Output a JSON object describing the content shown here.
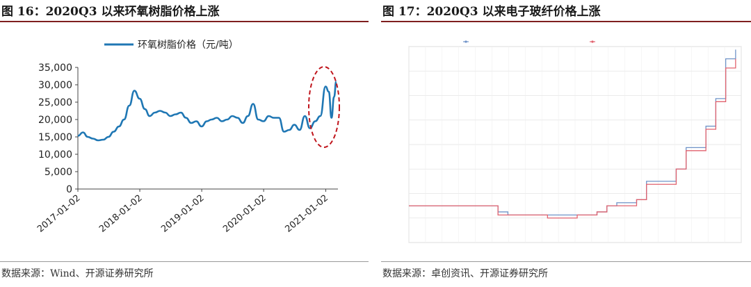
{
  "left": {
    "title": "图 16：2020Q3 以来环氧树脂价格上涨",
    "source": "数据来源：Wind、开源证券研究所",
    "line_color": "#1f77b4",
    "highlight_color": "#c0161d",
    "chart_data": {
      "type": "line",
      "series": [
        {
          "name": "环氧树脂价格（元/吨）",
          "values": [
            [
              "2017-01-02",
              15300
            ],
            [
              "2017-02-01",
              16300
            ],
            [
              "2017-03-01",
              15000
            ],
            [
              "2017-04-01",
              14500
            ],
            [
              "2017-05-01",
              14000
            ],
            [
              "2017-06-01",
              14200
            ],
            [
              "2017-07-01",
              15000
            ],
            [
              "2017-08-01",
              16500
            ],
            [
              "2017-09-01",
              18000
            ],
            [
              "2017-10-01",
              20000
            ],
            [
              "2017-11-01",
              24000
            ],
            [
              "2017-12-01",
              28300
            ],
            [
              "2018-01-01",
              26000
            ],
            [
              "2018-02-01",
              23000
            ],
            [
              "2018-03-01",
              21000
            ],
            [
              "2018-04-01",
              22000
            ],
            [
              "2018-05-01",
              22500
            ],
            [
              "2018-06-01",
              22000
            ],
            [
              "2018-07-01",
              21000
            ],
            [
              "2018-08-01",
              21500
            ],
            [
              "2018-09-01",
              22000
            ],
            [
              "2018-10-01",
              20500
            ],
            [
              "2018-11-01",
              19000
            ],
            [
              "2018-12-01",
              19500
            ],
            [
              "2019-01-01",
              18000
            ],
            [
              "2019-02-01",
              19500
            ],
            [
              "2019-03-01",
              20000
            ],
            [
              "2019-04-01",
              20500
            ],
            [
              "2019-05-01",
              19500
            ],
            [
              "2019-06-01",
              20000
            ],
            [
              "2019-07-01",
              21000
            ],
            [
              "2019-08-01",
              20500
            ],
            [
              "2019-09-01",
              19000
            ],
            [
              "2019-10-01",
              21000
            ],
            [
              "2019-11-01",
              24500
            ],
            [
              "2019-12-01",
              20000
            ],
            [
              "2020-01-01",
              19500
            ],
            [
              "2020-02-01",
              21000
            ],
            [
              "2020-03-01",
              20500
            ],
            [
              "2020-04-01",
              20500
            ],
            [
              "2020-05-01",
              16500
            ],
            [
              "2020-06-01",
              17000
            ],
            [
              "2020-07-01",
              18500
            ],
            [
              "2020-08-01",
              17000
            ],
            [
              "2020-09-01",
              21000
            ],
            [
              "2020-10-01",
              17500
            ],
            [
              "2020-11-01",
              19500
            ],
            [
              "2020-12-01",
              21000
            ],
            [
              "2021-01-01",
              29500
            ],
            [
              "2021-01-20",
              28000
            ],
            [
              "2021-02-05",
              20500
            ],
            [
              "2021-02-20",
              26500
            ],
            [
              "2021-03-05",
              31000
            ]
          ]
        }
      ],
      "y_ticks": [
        "0",
        "5,000",
        "10,000",
        "15,000",
        "20,000",
        "25,000",
        "30,000",
        "35,000"
      ],
      "ylim": [
        0,
        35000
      ],
      "x_ticks": [
        "2017-01-02",
        "2018-01-02",
        "2019-01-02",
        "2020-01-02",
        "2021-01-02"
      ],
      "xlim": [
        "2017-01-02",
        "2021-03-15"
      ],
      "legend_position": "top"
    }
  },
  "right": {
    "title": "图 17：2020Q3 以来电子玻纤价格上涨",
    "source": "数据来源：卓创资讯、开源证券研究所",
    "chart_data": {
      "type": "line",
      "series": [
        {
          "name": "",
          "color": "#6f93c8",
          "values": [
            [
              "2020-07-02",
              4.6
            ],
            [
              "2020-07-09",
              4.6
            ],
            [
              "2020-07-16",
              4.6
            ],
            [
              "2020-07-23",
              4.6
            ],
            [
              "2020-07-30",
              4.6
            ],
            [
              "2020-08-06",
              4.6
            ],
            [
              "2020-08-13",
              4.6
            ],
            [
              "2020-08-20",
              4.6
            ],
            [
              "2020-08-27",
              4.6
            ],
            [
              "2020-09-03",
              4.5
            ],
            [
              "2020-09-10",
              4.45
            ],
            [
              "2020-09-17",
              4.45
            ],
            [
              "2020-09-24",
              4.45
            ],
            [
              "2020-10-01",
              4.45
            ],
            [
              "2020-10-08",
              4.45
            ],
            [
              "2020-10-15",
              4.45
            ],
            [
              "2020-10-22",
              4.45
            ],
            [
              "2020-10-29",
              4.45
            ],
            [
              "2020-11-05",
              4.45
            ],
            [
              "2020-11-12",
              4.5
            ],
            [
              "2020-11-19",
              4.6
            ],
            [
              "2020-11-26",
              4.65
            ],
            [
              "2020-12-03",
              4.65
            ],
            [
              "2020-12-10",
              4.7
            ],
            [
              "2020-12-17",
              5.0
            ],
            [
              "2020-12-24",
              5.0
            ],
            [
              "2020-12-31",
              5.0
            ],
            [
              "2021-01-07",
              5.2
            ],
            [
              "2021-01-14",
              5.55
            ],
            [
              "2021-01-21",
              5.55
            ],
            [
              "2021-01-28",
              5.9
            ],
            [
              "2021-02-04",
              6.35
            ],
            [
              "2021-02-11",
              7.0
            ],
            [
              "2021-02-18",
              7.15
            ]
          ]
        },
        {
          "name": "",
          "color": "#e1626e",
          "values": [
            [
              "2020-07-02",
              4.6
            ],
            [
              "2020-07-09",
              4.6
            ],
            [
              "2020-07-16",
              4.6
            ],
            [
              "2020-07-23",
              4.6
            ],
            [
              "2020-07-30",
              4.6
            ],
            [
              "2020-08-06",
              4.6
            ],
            [
              "2020-08-13",
              4.6
            ],
            [
              "2020-08-20",
              4.6
            ],
            [
              "2020-08-27",
              4.6
            ],
            [
              "2020-09-03",
              4.45
            ],
            [
              "2020-09-10",
              4.45
            ],
            [
              "2020-09-17",
              4.45
            ],
            [
              "2020-09-24",
              4.45
            ],
            [
              "2020-10-01",
              4.45
            ],
            [
              "2020-10-08",
              4.4
            ],
            [
              "2020-10-15",
              4.4
            ],
            [
              "2020-10-22",
              4.4
            ],
            [
              "2020-10-29",
              4.45
            ],
            [
              "2020-11-05",
              4.45
            ],
            [
              "2020-11-12",
              4.5
            ],
            [
              "2020-11-19",
              4.6
            ],
            [
              "2020-11-26",
              4.6
            ],
            [
              "2020-12-03",
              4.6
            ],
            [
              "2020-12-10",
              4.7
            ],
            [
              "2020-12-17",
              4.95
            ],
            [
              "2020-12-24",
              4.95
            ],
            [
              "2020-12-31",
              4.95
            ],
            [
              "2021-01-07",
              5.2
            ],
            [
              "2021-01-14",
              5.5
            ],
            [
              "2021-01-21",
              5.5
            ],
            [
              "2021-01-28",
              5.85
            ],
            [
              "2021-02-04",
              6.3
            ],
            [
              "2021-02-11",
              6.85
            ],
            [
              "2021-02-18",
              7.0
            ]
          ]
        }
      ],
      "ylim": [
        4.0,
        7.2
      ],
      "xlim": [
        "2020-07-02",
        "2021-02-22"
      ],
      "legend_position": "top"
    }
  }
}
